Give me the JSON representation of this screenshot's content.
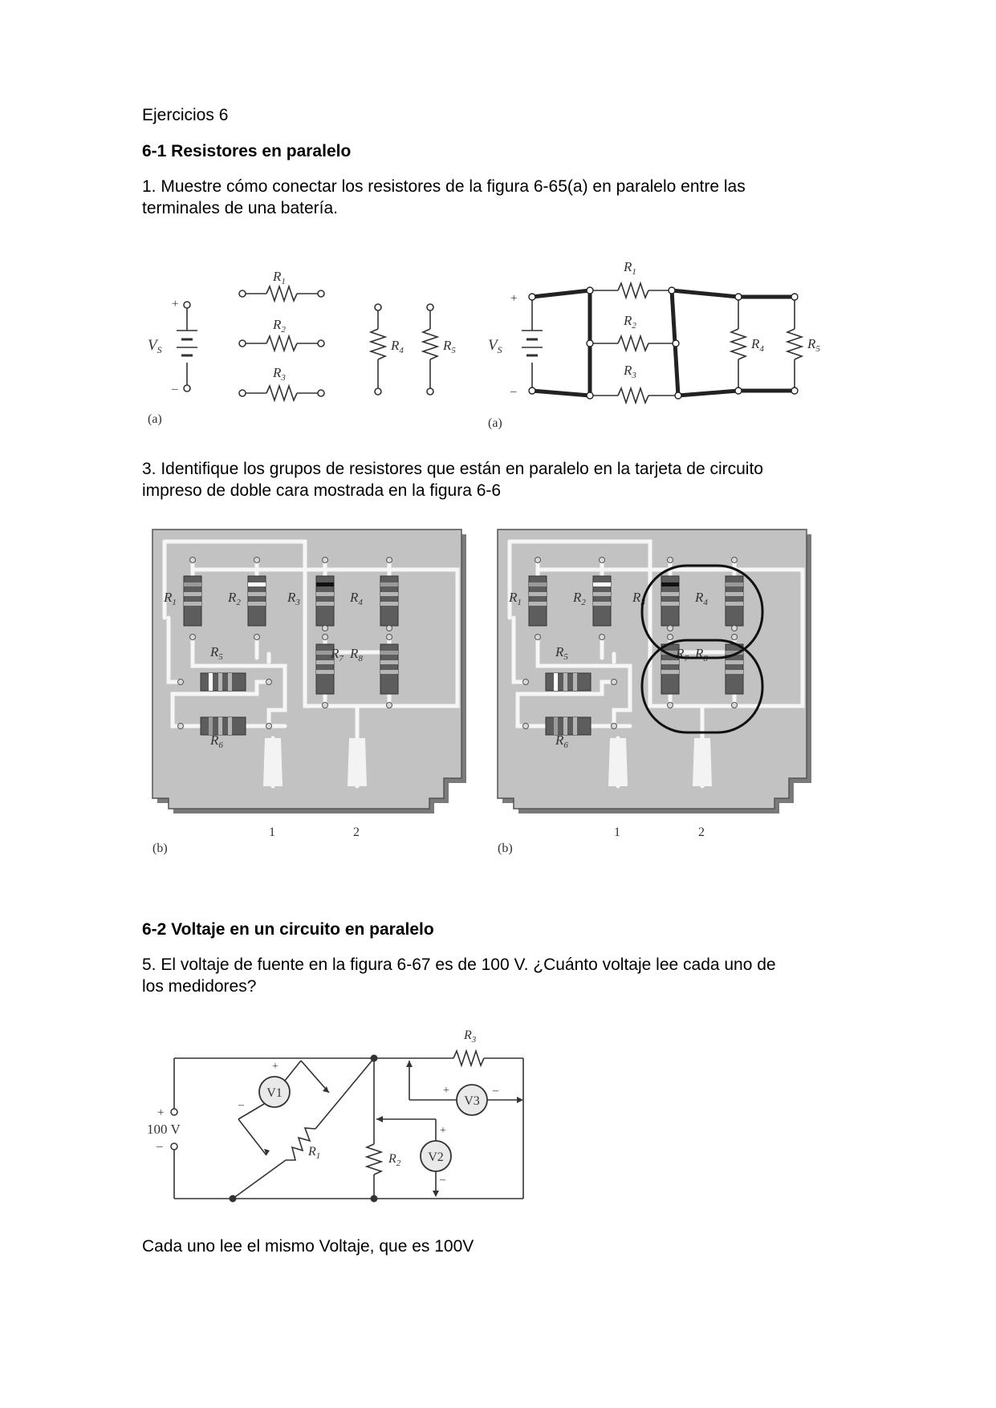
{
  "doc": {
    "title": "Ejercicios 6",
    "section1": "6-1 Resistores en paralelo",
    "q1_line1": "1. Muestre cómo conectar los resistores de la figura 6-65(a) en paralelo entre las",
    "q1_line2": "terminales de una batería.",
    "q3_line1": "3. Identifique los grupos de resistores que están en paralelo en la tarjeta de circuito",
    "q3_line2": "impreso de doble cara mostrada en la figura 6-6",
    "section2": "6-2 Voltaje en un circuito en paralelo",
    "q5_line1": "5. El voltaje de fuente en la figura 6-67 es de 100 V. ¿Cuánto voltaje lee cada uno de",
    "q5_line2": "los medidores?",
    "answer5": "Cada uno lee el mismo Voltaje, que es 100V"
  },
  "fig1": {
    "vs": "V",
    "vs_sub": "S",
    "resistors": [
      "R",
      "1",
      "R",
      "2",
      "R",
      "3",
      "R",
      "4",
      "R",
      "5"
    ],
    "plus": "+",
    "minus": "–",
    "caption": "(a)"
  },
  "fig2": {
    "labels": [
      "R",
      "1",
      "R",
      "2",
      "R",
      "3",
      "R",
      "4",
      "R",
      "5",
      "R",
      "6",
      "R",
      "7",
      "R",
      "8"
    ],
    "terminals": [
      "1",
      "2"
    ],
    "caption": "(b)"
  },
  "fig3": {
    "source": "100 V",
    "meters": [
      "V1",
      "V2",
      "V3"
    ],
    "resistors": [
      "R",
      "1",
      "R",
      "2",
      "R",
      "3"
    ],
    "plus": "+",
    "minus": "–"
  }
}
